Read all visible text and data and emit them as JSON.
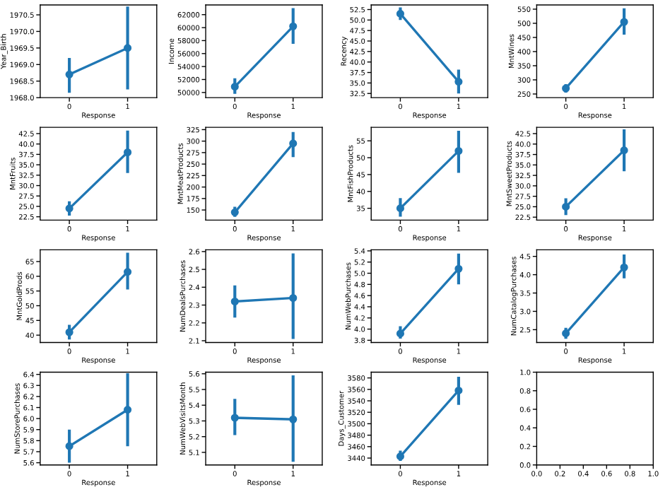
{
  "chart_data": [
    {
      "type": "line",
      "categories": [
        "0",
        "1"
      ],
      "xlabel": "Response",
      "ylabel": "Year_Birth",
      "marker": "circle",
      "grid": false,
      "legend": false,
      "series": [
        {
          "color": "#1f77b4",
          "values": [
            1968.7,
            1969.5
          ],
          "errors": [
            [
              1968.15,
              1969.2
            ],
            [
              1968.25,
              1970.75
            ]
          ]
        }
      ],
      "ylim": [
        1968.0,
        1970.8
      ],
      "yticks": [
        {
          "value": 1968,
          "label": "1968.0"
        },
        1968.5,
        {
          "value": 1969,
          "label": "1969.0"
        },
        1969.5,
        {
          "value": 1970,
          "label": "1970.0"
        },
        1970.5
      ]
    },
    {
      "type": "line",
      "categories": [
        "0",
        "1"
      ],
      "xlabel": "Response",
      "ylabel": "Income",
      "marker": "circle",
      "grid": false,
      "legend": false,
      "series": [
        {
          "color": "#1f77b4",
          "values": [
            50900,
            60200
          ],
          "errors": [
            [
              49800,
              52200
            ],
            [
              57500,
              63000
            ]
          ]
        }
      ],
      "ylim": [
        49200,
        63500
      ],
      "yticks": [
        50000,
        52000,
        54000,
        56000,
        58000,
        60000,
        62000
      ]
    },
    {
      "type": "line",
      "categories": [
        "0",
        "1"
      ],
      "xlabel": "Response",
      "ylabel": "Recency",
      "marker": "circle",
      "grid": false,
      "legend": false,
      "series": [
        {
          "color": "#1f77b4",
          "values": [
            51.5,
            35.3
          ],
          "errors": [
            [
              50.0,
              53.0
            ],
            [
              32.5,
              38.2
            ]
          ]
        }
      ],
      "ylim": [
        31.5,
        53.6
      ],
      "yticks": [
        32.5,
        {
          "value": 35,
          "label": "35.0"
        },
        37.5,
        {
          "value": 40,
          "label": "40.0"
        },
        42.5,
        {
          "value": 45,
          "label": "45.0"
        },
        47.5,
        {
          "value": 50,
          "label": "50.0"
        },
        52.5
      ]
    },
    {
      "type": "line",
      "categories": [
        "0",
        "1"
      ],
      "xlabel": "Response",
      "ylabel": "MntWines",
      "marker": "circle",
      "grid": false,
      "legend": false,
      "series": [
        {
          "color": "#1f77b4",
          "values": [
            270,
            505
          ],
          "errors": [
            [
              255,
              285
            ],
            [
              460,
              553
            ]
          ]
        }
      ],
      "ylim": [
        237,
        565
      ],
      "yticks": [
        250,
        300,
        350,
        400,
        450,
        500,
        550
      ]
    },
    {
      "type": "line",
      "categories": [
        "0",
        "1"
      ],
      "xlabel": "Response",
      "ylabel": "MntFruits",
      "marker": "circle",
      "grid": false,
      "legend": false,
      "series": [
        {
          "color": "#1f77b4",
          "values": [
            24.5,
            38.0
          ],
          "errors": [
            [
              22.8,
              26.2
            ],
            [
              33.0,
              43.2
            ]
          ]
        }
      ],
      "ylim": [
        21.7,
        44.0
      ],
      "yticks": [
        22.5,
        {
          "value": 25,
          "label": "25.0"
        },
        27.5,
        {
          "value": 30,
          "label": "30.0"
        },
        32.5,
        {
          "value": 35,
          "label": "35.0"
        },
        37.5,
        {
          "value": 40,
          "label": "40.0"
        },
        42.5
      ]
    },
    {
      "type": "line",
      "categories": [
        "0",
        "1"
      ],
      "xlabel": "Response",
      "ylabel": "MntMeatProducts",
      "marker": "circle",
      "grid": false,
      "legend": false,
      "series": [
        {
          "color": "#1f77b4",
          "values": [
            145,
            295
          ],
          "errors": [
            [
              135,
              157
            ],
            [
              265,
              320
            ]
          ]
        }
      ],
      "ylim": [
        128,
        330
      ],
      "yticks": [
        150,
        175,
        200,
        225,
        250,
        275,
        300,
        325
      ]
    },
    {
      "type": "line",
      "categories": [
        "0",
        "1"
      ],
      "xlabel": "Response",
      "ylabel": "MntFishProducts",
      "marker": "circle",
      "grid": false,
      "legend": false,
      "series": [
        {
          "color": "#1f77b4",
          "values": [
            35.0,
            52.0
          ],
          "errors": [
            [
              32.5,
              38.0
            ],
            [
              45.5,
              58.0
            ]
          ]
        }
      ],
      "ylim": [
        31.5,
        59.0
      ],
      "yticks": [
        35,
        40,
        45,
        50,
        55
      ]
    },
    {
      "type": "line",
      "categories": [
        "0",
        "1"
      ],
      "xlabel": "Response",
      "ylabel": "MntSweetProducts",
      "marker": "circle",
      "grid": false,
      "legend": false,
      "series": [
        {
          "color": "#1f77b4",
          "values": [
            25.0,
            38.5
          ],
          "errors": [
            [
              23.0,
              27.0
            ],
            [
              33.5,
              43.5
            ]
          ]
        }
      ],
      "ylim": [
        21.8,
        44.0
      ],
      "yticks": [
        22.5,
        {
          "value": 25,
          "label": "25.0"
        },
        27.5,
        {
          "value": 30,
          "label": "30.0"
        },
        32.5,
        {
          "value": 35,
          "label": "35.0"
        },
        37.5,
        {
          "value": 40,
          "label": "40.0"
        },
        42.5
      ]
    },
    {
      "type": "line",
      "categories": [
        "0",
        "1"
      ],
      "xlabel": "Response",
      "ylabel": "MntGoldProds",
      "marker": "circle",
      "grid": false,
      "legend": false,
      "series": [
        {
          "color": "#1f77b4",
          "values": [
            41.0,
            61.5
          ],
          "errors": [
            [
              38.5,
              43.5
            ],
            [
              55.5,
              68.0
            ]
          ]
        }
      ],
      "ylim": [
        37.5,
        69.0
      ],
      "yticks": [
        40,
        45,
        50,
        55,
        60,
        65
      ]
    },
    {
      "type": "line",
      "categories": [
        "0",
        "1"
      ],
      "xlabel": "Response",
      "ylabel": "NumDealsPurchases",
      "marker": "circle",
      "grid": false,
      "legend": false,
      "series": [
        {
          "color": "#1f77b4",
          "values": [
            2.32,
            2.34
          ],
          "errors": [
            [
              2.23,
              2.41
            ],
            [
              2.11,
              2.59
            ]
          ]
        }
      ],
      "ylim": [
        2.09,
        2.61
      ],
      "yticks": [
        2.1,
        2.2,
        2.3,
        2.4,
        2.5,
        2.6
      ]
    },
    {
      "type": "line",
      "categories": [
        "0",
        "1"
      ],
      "xlabel": "Response",
      "ylabel": "NumWebPurchases",
      "marker": "circle",
      "grid": false,
      "legend": false,
      "series": [
        {
          "color": "#1f77b4",
          "values": [
            3.92,
            5.08
          ],
          "errors": [
            [
              3.83,
              4.05
            ],
            [
              4.8,
              5.35
            ]
          ]
        }
      ],
      "ylim": [
        3.76,
        5.42
      ],
      "yticks": [
        3.8,
        {
          "value": 4,
          "label": "4.0"
        },
        4.2,
        4.4,
        4.6,
        4.8,
        {
          "value": 5,
          "label": "5.0"
        },
        5.2,
        5.4
      ]
    },
    {
      "type": "line",
      "categories": [
        "0",
        "1"
      ],
      "xlabel": "Response",
      "ylabel": "NumCatalogPurchases",
      "marker": "circle",
      "grid": false,
      "legend": false,
      "series": [
        {
          "color": "#1f77b4",
          "values": [
            2.4,
            4.2
          ],
          "errors": [
            [
              2.25,
              2.55
            ],
            [
              3.9,
              4.55
            ]
          ]
        }
      ],
      "ylim": [
        2.15,
        4.68
      ],
      "yticks": [
        2.5,
        {
          "value": 3,
          "label": "3.0"
        },
        3.5,
        {
          "value": 4,
          "label": "4.0"
        },
        4.5
      ]
    },
    {
      "type": "line",
      "categories": [
        "0",
        "1"
      ],
      "xlabel": "Response",
      "ylabel": "NumStorePurchases",
      "marker": "circle",
      "grid": false,
      "legend": false,
      "series": [
        {
          "color": "#1f77b4",
          "values": [
            5.75,
            6.08
          ],
          "errors": [
            [
              5.6,
              5.9
            ],
            [
              5.75,
              6.41
            ]
          ]
        }
      ],
      "ylim": [
        5.58,
        6.42
      ],
      "yticks": [
        5.6,
        5.7,
        5.8,
        5.9,
        {
          "value": 6,
          "label": "6.0"
        },
        6.1,
        6.2,
        6.3,
        6.4
      ]
    },
    {
      "type": "line",
      "categories": [
        "0",
        "1"
      ],
      "xlabel": "Response",
      "ylabel": "NumWebVisitsMonth",
      "marker": "circle",
      "grid": false,
      "legend": false,
      "series": [
        {
          "color": "#1f77b4",
          "values": [
            5.32,
            5.31
          ],
          "errors": [
            [
              5.21,
              5.44
            ],
            [
              5.04,
              5.59
            ]
          ]
        }
      ],
      "ylim": [
        5.02,
        5.61
      ],
      "yticks": [
        5.1,
        5.2,
        5.3,
        5.4,
        5.5,
        5.6
      ]
    },
    {
      "type": "line",
      "categories": [
        "0",
        "1"
      ],
      "xlabel": "Response",
      "ylabel": "Days_Customer",
      "marker": "circle",
      "grid": false,
      "legend": false,
      "series": [
        {
          "color": "#1f77b4",
          "values": [
            3443,
            3558
          ],
          "errors": [
            [
              3435,
              3453
            ],
            [
              3533,
              3582
            ]
          ]
        }
      ],
      "ylim": [
        3428,
        3590
      ],
      "yticks": [
        3440,
        3460,
        3480,
        3500,
        3520,
        3540,
        3560,
        3580
      ]
    },
    {
      "type": "line",
      "xlim": [
        0,
        1
      ],
      "ylim": [
        0,
        1
      ],
      "xticks": [
        {
          "value": 0,
          "label": "0.0"
        },
        0.2,
        0.4,
        0.6,
        0.8,
        {
          "value": 1,
          "label": "1.0"
        }
      ],
      "yticks": [
        {
          "value": 0,
          "label": "0.0"
        },
        0.2,
        0.4,
        0.6,
        0.8,
        {
          "value": 1,
          "label": "1.0"
        }
      ]
    }
  ]
}
